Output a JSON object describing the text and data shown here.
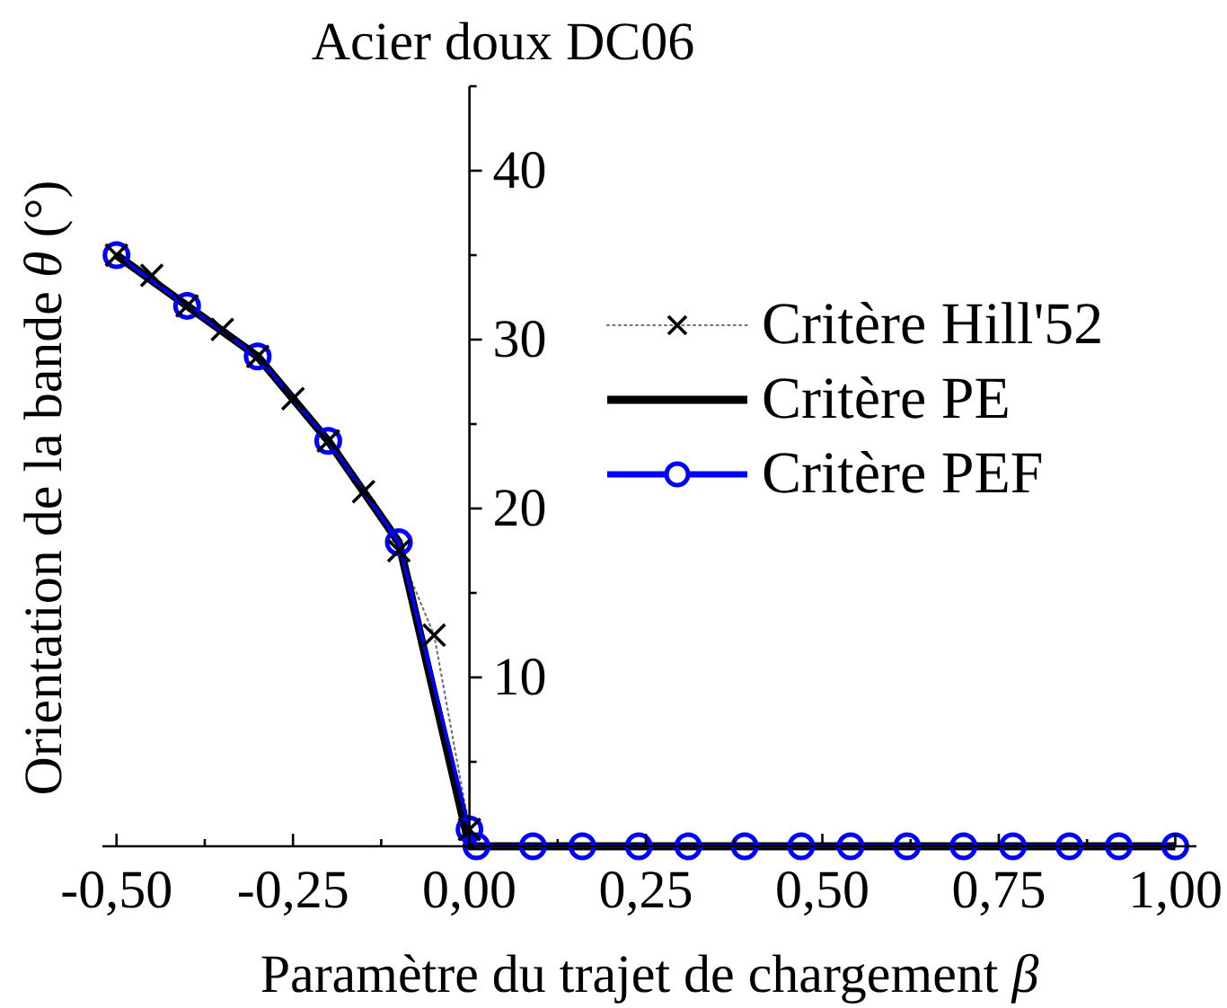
{
  "chart_data": {
    "type": "line",
    "title": "Acier doux DC06",
    "xlabel": "Paramètre du trajet de chargement β",
    "ylabel": "Orientation de la bande θ (°)",
    "xlim": [
      -0.52,
      1.03
    ],
    "xticks": [
      {
        "value": -0.5,
        "label": "-0,50"
      },
      {
        "value": -0.375,
        "label": null
      },
      {
        "value": -0.25,
        "label": "-0,25"
      },
      {
        "value": -0.125,
        "label": null
      },
      {
        "value": 0,
        "label": "0,00"
      },
      {
        "value": 0.125,
        "label": null
      },
      {
        "value": 0.25,
        "label": "0,25"
      },
      {
        "value": 0.375,
        "label": null
      },
      {
        "value": 0.5,
        "label": "0,50"
      },
      {
        "value": 0.625,
        "label": null
      },
      {
        "value": 0.75,
        "label": "0,75"
      },
      {
        "value": 0.875,
        "label": null
      },
      {
        "value": 1,
        "label": "1,00"
      }
    ],
    "ylim": [
      0,
      45
    ],
    "yticks": [
      {
        "value": 0,
        "label": null
      },
      {
        "value": 5,
        "label": null
      },
      10,
      {
        "value": 15,
        "label": null
      },
      20,
      {
        "value": 25,
        "label": null
      },
      30,
      {
        "value": 35,
        "label": null
      },
      40,
      {
        "value": 45,
        "label": null
      }
    ],
    "legend": "right",
    "series": [
      {
        "name": "Critère Hill'52",
        "color": "#000000",
        "marker": "cross",
        "line_style": "dotted",
        "x": [
          -0.5,
          -0.45,
          -0.4,
          -0.35,
          -0.3,
          -0.25,
          -0.2,
          -0.15,
          -0.1,
          -0.05,
          0
        ],
        "values": [
          35,
          33.8,
          32,
          30.6,
          29,
          26.5,
          24,
          21,
          17.5,
          12.5,
          1
        ]
      },
      {
        "name": "Critère PE",
        "color": "#000000",
        "marker": "none",
        "line_style": "solid",
        "x": [
          -0.5,
          -0.4,
          -0.3,
          -0.2,
          -0.1,
          0,
          1
        ],
        "values": [
          35,
          32,
          29,
          24,
          18,
          0,
          0
        ]
      },
      {
        "name": "Critère PEF",
        "color": "#0000ff",
        "marker": "circle",
        "line_style": "solid",
        "x": [
          -0.5,
          -0.4,
          -0.3,
          -0.2,
          -0.1,
          0,
          0.01,
          0.09,
          0.16,
          0.24,
          0.31,
          0.39,
          0.47,
          0.54,
          0.62,
          0.7,
          0.77,
          0.85,
          0.92,
          1
        ],
        "values": [
          35,
          32,
          29,
          24,
          18,
          1,
          0,
          0,
          0,
          0,
          0,
          0,
          0,
          0,
          0,
          0,
          0,
          0,
          0,
          0
        ]
      }
    ]
  }
}
